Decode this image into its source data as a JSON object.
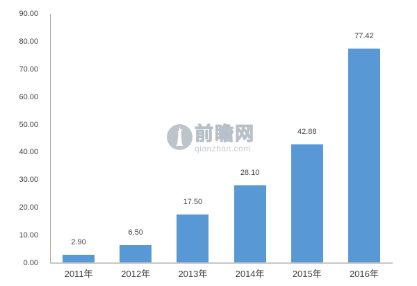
{
  "chart_data": {
    "type": "bar",
    "title": "",
    "categories": [
      "2011年",
      "2012年",
      "2013年",
      "2014年",
      "2015年",
      "2016年"
    ],
    "values": [
      2.9,
      6.5,
      17.5,
      28.1,
      42.88,
      77.42
    ],
    "value_labels": [
      "2.90",
      "6.50",
      "17.50",
      "28.10",
      "42.88",
      "77.42"
    ],
    "xlabel": "",
    "ylabel": "",
    "ylim": [
      0,
      90
    ],
    "ytick_step": 10,
    "ytick_labels": [
      "0.00",
      "10.00",
      "20.00",
      "30.00",
      "40.00",
      "50.00",
      "60.00",
      "70.00",
      "80.00",
      "90.00"
    ],
    "grid": false,
    "legend_position": "none",
    "bar_color": "#5899d5",
    "axis_line_color": "#a3a3a3",
    "baseline_color": "#c8c8c8",
    "label_color": "#3f3f3f"
  },
  "watermark": {
    "logo_icon": "qianzhan-tower-circle",
    "cn_text": "前瞻网",
    "en_text": "qianzhan.com",
    "color": "#b0b7c1"
  }
}
